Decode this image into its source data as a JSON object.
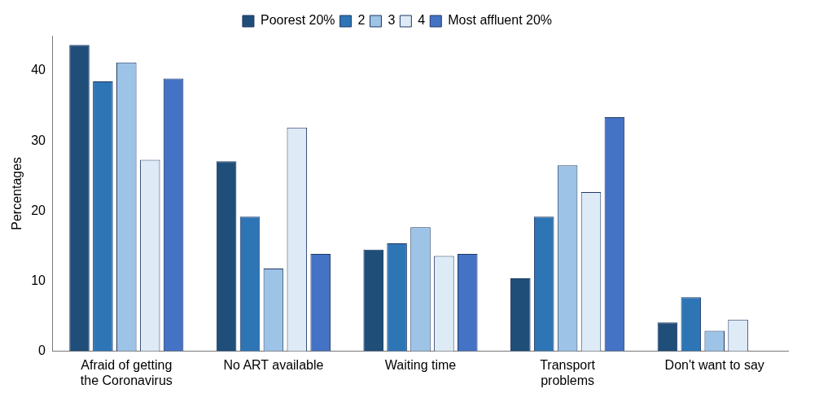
{
  "chart_data": {
    "type": "bar",
    "ylabel": "Percentages",
    "categories": [
      "Afraid of getting the Coronavirus",
      "No ART available",
      "Waiting time",
      "Transport problems",
      "Don't want to say"
    ],
    "series": [
      {
        "name": "Poorest 20%",
        "color": "#1f4e79",
        "values": [
          43.7,
          27.1,
          14.5,
          10.4,
          4.1
        ]
      },
      {
        "name": "2",
        "color": "#2e75b6",
        "values": [
          38.5,
          19.2,
          15.4,
          19.2,
          7.7
        ]
      },
      {
        "name": "3",
        "color": "#9dc3e6",
        "values": [
          41.2,
          11.8,
          17.7,
          26.5,
          2.9
        ]
      },
      {
        "name": "4",
        "color": "#deebf7",
        "values": [
          27.3,
          31.9,
          13.6,
          22.7,
          4.5
        ]
      },
      {
        "name": "Most affluent 20%",
        "color": "#4472c4",
        "values": [
          38.9,
          13.9,
          13.9,
          33.4,
          null
        ]
      }
    ],
    "ylim": [
      0,
      45
    ],
    "yticks": [
      0,
      10,
      20,
      30,
      40
    ],
    "grid": false,
    "legend": "top"
  }
}
